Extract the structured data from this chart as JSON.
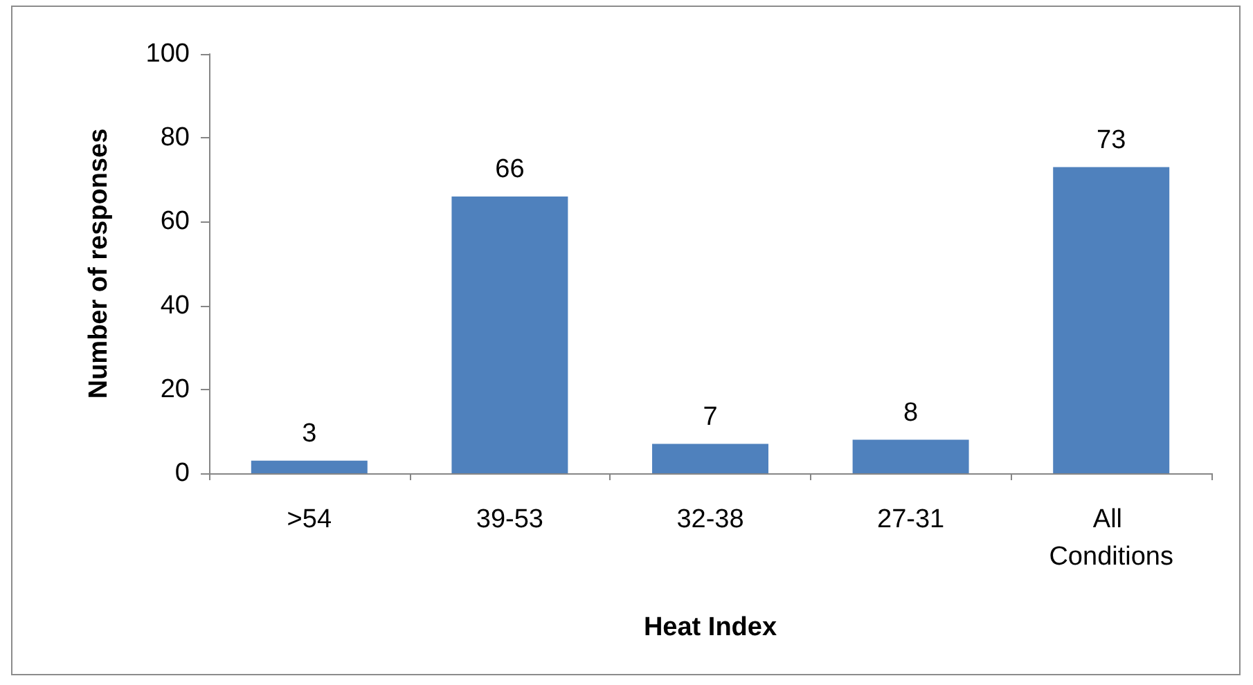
{
  "chart_data": {
    "type": "bar",
    "xlabel": "Heat Index",
    "ylabel": "Number of responses",
    "categories": [
      ">54",
      "39-53",
      "32-38",
      "27-31",
      "All Conditions"
    ],
    "values": [
      3,
      66,
      7,
      8,
      73
    ],
    "color": "#4f81bd",
    "ylim": [
      0,
      100
    ],
    "yticks": [
      0,
      20,
      40,
      60,
      80,
      100
    ],
    "grid": false,
    "data_labels": true
  }
}
